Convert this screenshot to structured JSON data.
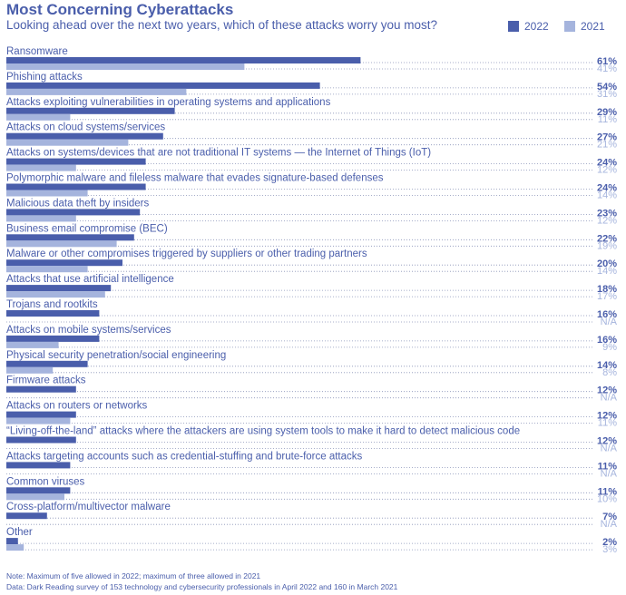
{
  "colors": {
    "series_2022": "#4a5eab",
    "series_2021": "#a5b4dd",
    "text": "#4a5eab",
    "dots": "#8a94b8"
  },
  "chart_data": {
    "type": "bar",
    "orientation": "horizontal",
    "title": "Most Concerning Cyberattacks",
    "subtitle": "Looking ahead over the next two years, which of these attacks worry you most?",
    "xlim": [
      0,
      100
    ],
    "value_suffix": "%",
    "legend_position": "top-right",
    "categories": [
      "Ransomware",
      "Phishing attacks",
      "Attacks exploiting vulnerabilities in operating systems and applications",
      "Attacks on cloud systems/services",
      "Attacks on systems/devices that are not traditional IT systems — the Internet of Things (IoT)",
      "Polymorphic malware and fileless malware that evades signature-based defenses",
      "Malicious data theft by insiders",
      "Business email compromise (BEC)",
      "Malware or other compromises triggered by suppliers or other trading partners",
      "Attacks that use artificial intelligence",
      "Trojans and rootkits",
      "Attacks on mobile systems/services",
      "Physical security penetration/social engineering",
      "Firmware attacks",
      "Attacks on routers or networks",
      "“Living-off-the-land” attacks where the attackers are using system tools to make it hard to detect malicious code",
      "Attacks targeting accounts such as credential-stuffing and brute-force attacks",
      "Common viruses",
      "Cross-platform/multivector malware",
      "Other"
    ],
    "series": [
      {
        "name": "2022",
        "values": [
          61,
          54,
          29,
          27,
          24,
          24,
          23,
          22,
          20,
          18,
          16,
          16,
          14,
          12,
          12,
          12,
          11,
          11,
          7,
          2
        ]
      },
      {
        "name": "2021",
        "values": [
          41,
          31,
          11,
          21,
          12,
          14,
          12,
          19,
          14,
          17,
          null,
          9,
          8,
          null,
          11,
          null,
          null,
          10,
          null,
          3
        ]
      }
    ],
    "missing_label": "N/A"
  },
  "notes": [
    "Note: Maximum of five allowed in 2022; maximum of three allowed in 2021",
    "Data: Dark Reading survey of 153 technology and cybersecurity professionals in April 2022 and 160 in March 2021"
  ]
}
